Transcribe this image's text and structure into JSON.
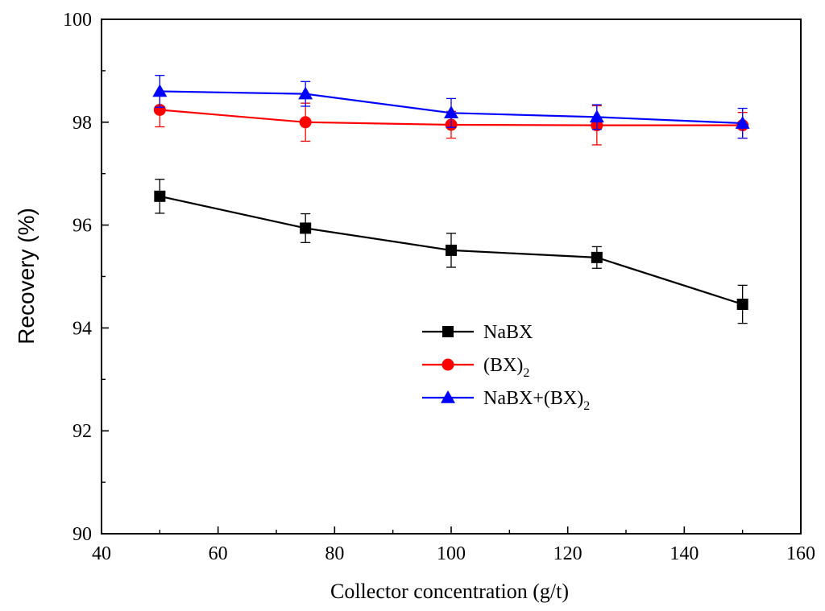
{
  "chart_data": {
    "type": "line",
    "title": "",
    "xlabel": "Collector concentration (g/t)",
    "ylabel": "Recovery (%)",
    "xlim": [
      40,
      160
    ],
    "ylim": [
      90,
      100
    ],
    "xticks": [
      40,
      60,
      80,
      100,
      120,
      140,
      160
    ],
    "yticks": [
      90,
      92,
      94,
      96,
      98,
      100
    ],
    "x_tick_labels": [
      "40",
      "60",
      "80",
      "100",
      "120",
      "140",
      "160"
    ],
    "y_tick_labels": [
      "90",
      "92",
      "94",
      "96",
      "98",
      "100"
    ],
    "x": [
      50,
      75,
      100,
      125,
      150
    ],
    "legend_position": "center",
    "series": [
      {
        "name": "NaBX",
        "legend_main": "NaBX",
        "legend_sub": "",
        "legend_tail": "",
        "color": "#000000",
        "marker": "square",
        "values": [
          96.56,
          95.94,
          95.51,
          95.37,
          94.46
        ],
        "errors": [
          0.33,
          0.28,
          0.33,
          0.21,
          0.37
        ]
      },
      {
        "name": "(BX)2",
        "legend_main": "(BX)",
        "legend_sub": "2",
        "legend_tail": "",
        "color": "#ff0000",
        "marker": "circle",
        "values": [
          98.24,
          98.0,
          97.95,
          97.94,
          97.94
        ],
        "errors": [
          0.33,
          0.37,
          0.26,
          0.38,
          0.25
        ]
      },
      {
        "name": "NaBX+(BX)2",
        "legend_main": "NaBX+(BX)",
        "legend_sub": "2",
        "legend_tail": "",
        "color": "#0000ff",
        "marker": "triangle",
        "values": [
          98.6,
          98.55,
          98.18,
          98.1,
          97.98
        ],
        "errors": [
          0.31,
          0.24,
          0.28,
          0.24,
          0.29
        ]
      }
    ]
  }
}
